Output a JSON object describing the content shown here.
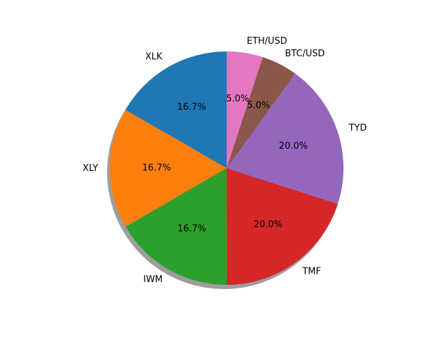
{
  "chart_data": {
    "type": "pie",
    "title": "",
    "shadow": true,
    "start_angle_deg": 90,
    "direction": "counterclockwise",
    "slices": [
      {
        "label": "XLK",
        "value": 16.7,
        "pct_label": "16.7%",
        "color": "#1f77b4"
      },
      {
        "label": "XLY",
        "value": 16.7,
        "pct_label": "16.7%",
        "color": "#ff7f0e"
      },
      {
        "label": "IWM",
        "value": 16.7,
        "pct_label": "16.7%",
        "color": "#2ca02c"
      },
      {
        "label": "TMF",
        "value": 20.0,
        "pct_label": "20.0%",
        "color": "#d62728"
      },
      {
        "label": "TYD",
        "value": 20.0,
        "pct_label": "20.0%",
        "color": "#9467bd"
      },
      {
        "label": "BTC/USD",
        "value": 5.0,
        "pct_label": "5.0%",
        "color": "#8c564b"
      },
      {
        "label": "ETH/USD",
        "value": 5.0,
        "pct_label": "5.0%",
        "color": "#e377c2"
      }
    ]
  }
}
